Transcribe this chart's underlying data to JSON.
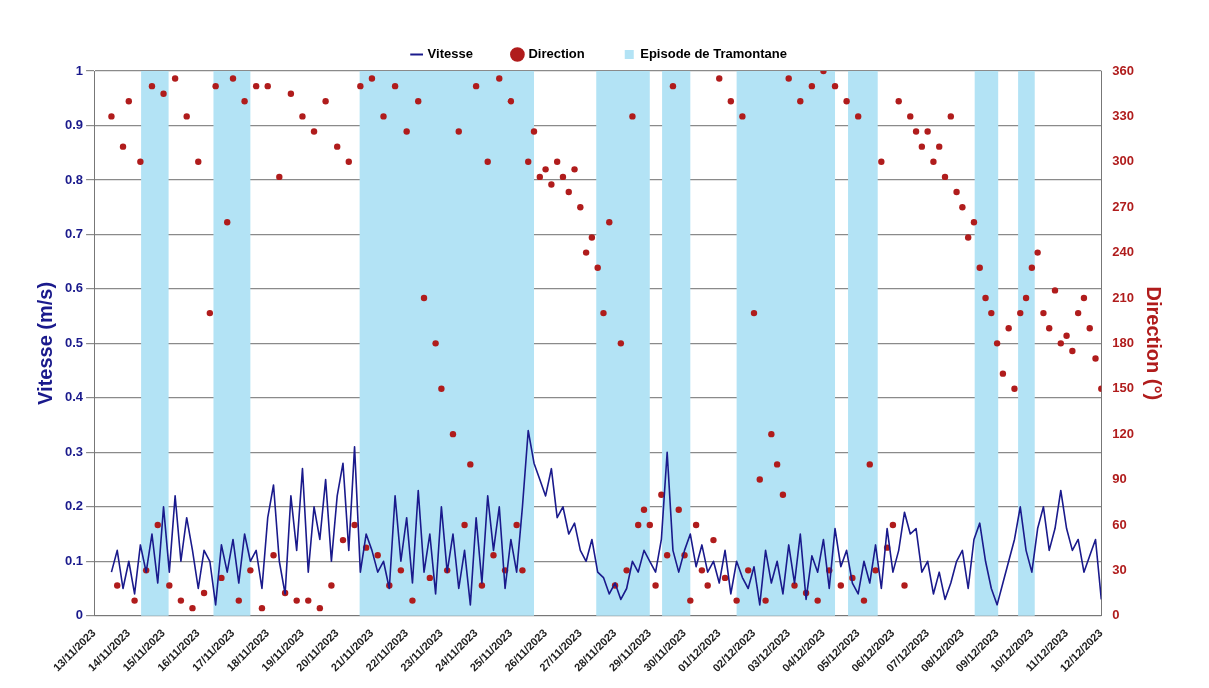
{
  "chart_data": {
    "type": "line",
    "x": [
      "2023-11-13T12:00",
      "2023-11-13T16:00",
      "2023-11-13T20:00",
      "2023-11-14T00:00",
      "2023-11-14T04:00",
      "2023-11-14T08:00",
      "2023-11-14T12:00",
      "2023-11-14T16:00",
      "2023-11-14T20:00",
      "2023-11-15T00:00",
      "2023-11-15T04:00",
      "2023-11-15T08:00",
      "2023-11-15T12:00",
      "2023-11-15T16:00",
      "2023-11-15T20:00",
      "2023-11-16T00:00",
      "2023-11-16T04:00",
      "2023-11-16T08:00",
      "2023-11-16T12:00",
      "2023-11-16T16:00",
      "2023-11-16T20:00",
      "2023-11-17T00:00",
      "2023-11-17T04:00",
      "2023-11-17T08:00",
      "2023-11-17T12:00",
      "2023-11-17T16:00",
      "2023-11-17T20:00",
      "2023-11-18T00:00",
      "2023-11-18T04:00",
      "2023-11-18T08:00",
      "2023-11-18T12:00",
      "2023-11-18T16:00",
      "2023-11-18T20:00",
      "2023-11-19T00:00",
      "2023-11-19T04:00",
      "2023-11-19T08:00",
      "2023-11-19T12:00",
      "2023-11-19T16:00",
      "2023-11-19T20:00",
      "2023-11-20T00:00",
      "2023-11-20T04:00",
      "2023-11-20T08:00",
      "2023-11-20T12:00",
      "2023-11-20T16:00",
      "2023-11-20T20:00",
      "2023-11-21T00:00",
      "2023-11-21T04:00",
      "2023-11-21T08:00",
      "2023-11-21T12:00",
      "2023-11-21T16:00",
      "2023-11-21T20:00",
      "2023-11-22T00:00",
      "2023-11-22T04:00",
      "2023-11-22T08:00",
      "2023-11-22T12:00",
      "2023-11-22T16:00",
      "2023-11-22T20:00",
      "2023-11-23T00:00",
      "2023-11-23T04:00",
      "2023-11-23T08:00",
      "2023-11-23T12:00",
      "2023-11-23T16:00",
      "2023-11-23T20:00",
      "2023-11-24T00:00",
      "2023-11-24T04:00",
      "2023-11-24T08:00",
      "2023-11-24T12:00",
      "2023-11-24T16:00",
      "2023-11-24T20:00",
      "2023-11-25T00:00",
      "2023-11-25T04:00",
      "2023-11-25T08:00",
      "2023-11-25T12:00",
      "2023-11-25T16:00",
      "2023-11-25T20:00",
      "2023-11-26T00:00",
      "2023-11-26T04:00",
      "2023-11-26T08:00",
      "2023-11-26T12:00",
      "2023-11-26T16:00",
      "2023-11-26T20:00",
      "2023-11-27T00:00",
      "2023-11-27T04:00",
      "2023-11-27T08:00",
      "2023-11-27T12:00",
      "2023-11-27T16:00",
      "2023-11-27T20:00",
      "2023-11-28T00:00",
      "2023-11-28T04:00",
      "2023-11-28T08:00",
      "2023-11-28T12:00",
      "2023-11-28T16:00",
      "2023-11-28T20:00",
      "2023-11-29T00:00",
      "2023-11-29T04:00",
      "2023-11-29T08:00",
      "2023-11-29T12:00",
      "2023-11-29T16:00",
      "2023-11-29T20:00",
      "2023-11-30T00:00",
      "2023-11-30T04:00",
      "2023-11-30T08:00",
      "2023-11-30T12:00",
      "2023-11-30T16:00",
      "2023-11-30T20:00",
      "2023-12-01T00:00",
      "2023-12-01T04:00",
      "2023-12-01T08:00",
      "2023-12-01T12:00",
      "2023-12-01T16:00",
      "2023-12-01T20:00",
      "2023-12-02T00:00",
      "2023-12-02T04:00",
      "2023-12-02T08:00",
      "2023-12-02T12:00",
      "2023-12-02T16:00",
      "2023-12-02T20:00",
      "2023-12-03T00:00",
      "2023-12-03T04:00",
      "2023-12-03T08:00",
      "2023-12-03T12:00",
      "2023-12-03T16:00",
      "2023-12-03T20:00",
      "2023-12-04T00:00",
      "2023-12-04T04:00",
      "2023-12-04T08:00",
      "2023-12-04T12:00",
      "2023-12-04T16:00",
      "2023-12-04T20:00",
      "2023-12-05T00:00",
      "2023-12-05T04:00",
      "2023-12-05T08:00",
      "2023-12-05T12:00",
      "2023-12-05T16:00",
      "2023-12-05T20:00",
      "2023-12-06T00:00",
      "2023-12-06T04:00",
      "2023-12-06T08:00",
      "2023-12-06T12:00",
      "2023-12-06T16:00",
      "2023-12-06T20:00",
      "2023-12-07T00:00",
      "2023-12-07T04:00",
      "2023-12-07T08:00",
      "2023-12-07T12:00",
      "2023-12-07T16:00",
      "2023-12-07T20:00",
      "2023-12-08T00:00",
      "2023-12-08T04:00",
      "2023-12-08T08:00",
      "2023-12-08T12:00",
      "2023-12-08T16:00",
      "2023-12-08T20:00",
      "2023-12-09T00:00",
      "2023-12-09T04:00",
      "2023-12-09T08:00",
      "2023-12-09T12:00",
      "2023-12-09T16:00",
      "2023-12-09T20:00",
      "2023-12-10T00:00",
      "2023-12-10T04:00",
      "2023-12-10T08:00",
      "2023-12-10T12:00",
      "2023-12-10T16:00",
      "2023-12-10T20:00",
      "2023-12-11T00:00",
      "2023-12-11T04:00",
      "2023-12-11T08:00",
      "2023-12-11T12:00",
      "2023-12-11T16:00",
      "2023-12-11T20:00",
      "2023-12-12T00:00"
    ],
    "series": [
      {
        "name": "Vitesse",
        "color": "#1a1a8c",
        "values": [
          0.08,
          0.12,
          0.05,
          0.1,
          0.04,
          0.13,
          0.08,
          0.15,
          0.06,
          0.2,
          0.08,
          0.22,
          0.1,
          0.18,
          0.12,
          0.05,
          0.12,
          0.1,
          0.02,
          0.13,
          0.08,
          0.14,
          0.06,
          0.15,
          0.1,
          0.12,
          0.05,
          0.18,
          0.24,
          0.1,
          0.04,
          0.22,
          0.12,
          0.27,
          0.08,
          0.2,
          0.14,
          0.25,
          0.1,
          0.22,
          0.28,
          0.12,
          0.31,
          0.08,
          0.15,
          0.12,
          0.08,
          0.1,
          0.05,
          0.22,
          0.1,
          0.18,
          0.06,
          0.23,
          0.08,
          0.15,
          0.04,
          0.2,
          0.08,
          0.15,
          0.05,
          0.12,
          0.02,
          0.18,
          0.06,
          0.22,
          0.12,
          0.2,
          0.05,
          0.14,
          0.08,
          0.2,
          0.34,
          0.28,
          0.25,
          0.22,
          0.27,
          0.18,
          0.2,
          0.15,
          0.17,
          0.12,
          0.1,
          0.14,
          0.08,
          0.07,
          0.04,
          0.06,
          0.03,
          0.05,
          0.1,
          0.08,
          0.12,
          0.1,
          0.08,
          0.14,
          0.3,
          0.12,
          0.08,
          0.12,
          0.15,
          0.09,
          0.13,
          0.08,
          0.1,
          0.06,
          0.12,
          0.04,
          0.1,
          0.07,
          0.05,
          0.09,
          0.02,
          0.12,
          0.06,
          0.1,
          0.04,
          0.13,
          0.06,
          0.15,
          0.03,
          0.11,
          0.08,
          0.14,
          0.05,
          0.16,
          0.09,
          0.12,
          0.06,
          0.04,
          0.1,
          0.06,
          0.13,
          0.05,
          0.16,
          0.08,
          0.12,
          0.19,
          0.15,
          0.16,
          0.08,
          0.1,
          0.04,
          0.08,
          0.03,
          0.06,
          0.1,
          0.12,
          0.05,
          0.14,
          0.17,
          0.1,
          0.05,
          0.02,
          0.06,
          0.1,
          0.14,
          0.2,
          0.12,
          0.08,
          0.16,
          0.2,
          0.12,
          0.16,
          0.23,
          0.16,
          0.12,
          0.14,
          0.08,
          0.11,
          0.14,
          0.03
        ]
      },
      {
        "name": "Direction",
        "type": "scatter",
        "axis": "y2",
        "marker": "circle",
        "color": "#b01c1c",
        "values": [
          330,
          20,
          310,
          340,
          10,
          300,
          30,
          350,
          60,
          345,
          20,
          355,
          10,
          330,
          5,
          300,
          15,
          200,
          350,
          25,
          260,
          355,
          10,
          340,
          30,
          350,
          5,
          350,
          40,
          290,
          15,
          345,
          10,
          330,
          10,
          320,
          5,
          340,
          20,
          310,
          50,
          300,
          60,
          350,
          45,
          355,
          40,
          330,
          20,
          350,
          30,
          320,
          10,
          340,
          210,
          25,
          180,
          150,
          30,
          120,
          320,
          60,
          100,
          350,
          20,
          300,
          40,
          355,
          30,
          340,
          60,
          30,
          300,
          320,
          290,
          295,
          285,
          300,
          290,
          280,
          295,
          270,
          240,
          250,
          230,
          200,
          260,
          20,
          180,
          30,
          330,
          60,
          70,
          60,
          20,
          80,
          40,
          350,
          70,
          40,
          10,
          60,
          30,
          20,
          50,
          355,
          25,
          340,
          10,
          330,
          30,
          200,
          90,
          10,
          120,
          100,
          80,
          355,
          20,
          340,
          15,
          350,
          10,
          360,
          30,
          350,
          20,
          340,
          25,
          330,
          10,
          100,
          30,
          300,
          45,
          60,
          340,
          20,
          330,
          320,
          310,
          320,
          300,
          310,
          290,
          330,
          280,
          270,
          250,
          260,
          230,
          210,
          200,
          180,
          160,
          190,
          150,
          200,
          210,
          230,
          240,
          200,
          190,
          215,
          180,
          185,
          175,
          200,
          210,
          190,
          170,
          150
        ]
      }
    ],
    "ylabel": "Vitesse (m/s)",
    "y2label": "Direction (°)",
    "xlim": [
      "2023-11-13",
      "2023-12-12"
    ],
    "xticks": [
      {
        "value": "2023-11-13",
        "label": "13/11/2023"
      },
      {
        "value": "2023-11-14",
        "label": "14/11/2023"
      },
      {
        "value": "2023-11-15",
        "label": "15/11/2023"
      },
      {
        "value": "2023-11-16",
        "label": "16/11/2023"
      },
      {
        "value": "2023-11-17",
        "label": "17/11/2023"
      },
      {
        "value": "2023-11-18",
        "label": "18/11/2023"
      },
      {
        "value": "2023-11-19",
        "label": "19/11/2023"
      },
      {
        "value": "2023-11-20",
        "label": "20/11/2023"
      },
      {
        "value": "2023-11-21",
        "label": "21/11/2023"
      },
      {
        "value": "2023-11-22",
        "label": "22/11/2023"
      },
      {
        "value": "2023-11-23",
        "label": "23/11/2023"
      },
      {
        "value": "2023-11-24",
        "label": "24/11/2023"
      },
      {
        "value": "2023-11-25",
        "label": "25/11/2023"
      },
      {
        "value": "2023-11-26",
        "label": "26/11/2023"
      },
      {
        "value": "2023-11-27",
        "label": "27/11/2023"
      },
      {
        "value": "2023-11-28",
        "label": "28/11/2023"
      },
      {
        "value": "2023-11-29",
        "label": "29/11/2023"
      },
      {
        "value": "2023-11-30",
        "label": "30/11/2023"
      },
      {
        "value": "2023-12-01",
        "label": "01/12/2023"
      },
      {
        "value": "2023-12-02",
        "label": "02/12/2023"
      },
      {
        "value": "2023-12-03",
        "label": "03/12/2023"
      },
      {
        "value": "2023-12-04",
        "label": "04/12/2023"
      },
      {
        "value": "2023-12-05",
        "label": "05/12/2023"
      },
      {
        "value": "2023-12-06",
        "label": "06/12/2023"
      },
      {
        "value": "2023-12-07",
        "label": "07/12/2023"
      },
      {
        "value": "2023-12-08",
        "label": "08/12/2023"
      },
      {
        "value": "2023-12-09",
        "label": "09/12/2023"
      },
      {
        "value": "2023-12-10",
        "label": "10/12/2023"
      },
      {
        "value": "2023-12-11",
        "label": "11/12/2023"
      },
      {
        "value": "2023-12-12",
        "label": "12/12/2023"
      }
    ],
    "ylim": [
      0,
      1
    ],
    "yticks": [
      0,
      0.1,
      0.2,
      0.3,
      0.4,
      0.5,
      0.6,
      0.7,
      0.8,
      0.9,
      1
    ],
    "y2lim": [
      0,
      360
    ],
    "y2ticks": [
      0,
      30,
      60,
      90,
      120,
      150,
      180,
      210,
      240,
      270,
      300,
      330,
      360
    ],
    "bands": [
      {
        "axis": "x",
        "from": "2023-11-14T08:30",
        "to": "2023-11-15T03:30",
        "label": "Episode de Tramontane",
        "color": "#b3e3f5"
      },
      {
        "axis": "x",
        "from": "2023-11-16T10:30",
        "to": "2023-11-17T12:00",
        "color": "#b3e3f5"
      },
      {
        "axis": "x",
        "from": "2023-11-20T15:30",
        "to": "2023-11-25T16:00",
        "color": "#b3e3f5"
      },
      {
        "axis": "x",
        "from": "2023-11-27T11:00",
        "to": "2023-11-29T00:00",
        "color": "#b3e3f5"
      },
      {
        "axis": "x",
        "from": "2023-11-29T08:30",
        "to": "2023-11-30T04:00",
        "color": "#b3e3f5"
      },
      {
        "axis": "x",
        "from": "2023-12-01T12:00",
        "to": "2023-12-04T08:00",
        "color": "#b3e3f5"
      },
      {
        "axis": "x",
        "from": "2023-12-04T17:00",
        "to": "2023-12-05T13:30",
        "color": "#b3e3f5"
      },
      {
        "axis": "x",
        "from": "2023-12-08T08:30",
        "to": "2023-12-09T00:45",
        "color": "#b3e3f5"
      },
      {
        "axis": "x",
        "from": "2023-12-09T14:30",
        "to": "2023-12-10T02:00",
        "color": "#b3e3f5"
      }
    ],
    "grid": "y",
    "legend": "top"
  }
}
